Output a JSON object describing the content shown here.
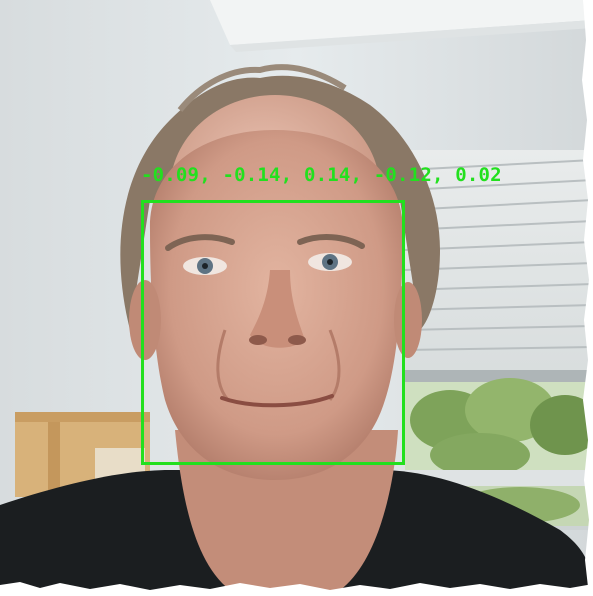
{
  "detection": {
    "label": "-0.09, -0.14, 0.14, -0.12, 0.02",
    "color": "#22e01e"
  },
  "scene": {
    "wall_color": "#e3e8ea",
    "ceiling_color": "#f1f3f3",
    "shirt_color": "#1a1d1f",
    "skin_color": "#d09a86",
    "hair_color": "#8c7a6a"
  }
}
